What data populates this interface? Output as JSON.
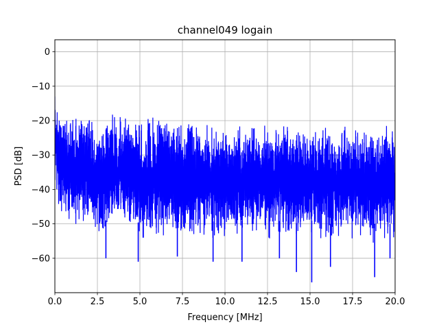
{
  "chart_data": {
    "type": "line",
    "title": "channel049 logain",
    "xlabel": "Frequency [MHz]",
    "ylabel": "PSD [dB]",
    "xlim": [
      0,
      20
    ],
    "ylim": [
      -70,
      3.5
    ],
    "grid": true,
    "line_color": "#0000ff",
    "x_ticks": [
      0.0,
      2.5,
      5.0,
      7.5,
      10.0,
      12.5,
      15.0,
      17.5,
      20.0
    ],
    "x_tick_labels": [
      "0.0",
      "2.5",
      "5.0",
      "7.5",
      "10.0",
      "12.5",
      "15.0",
      "17.5",
      "20.0"
    ],
    "y_ticks": [
      0,
      -10,
      -20,
      -30,
      -40,
      -50,
      -60
    ],
    "y_tick_labels": [
      "0",
      "−10",
      "−20",
      "−30",
      "−40",
      "−50",
      "−60"
    ],
    "series": [
      {
        "x": [
          0.0,
          0.1,
          0.2,
          0.5,
          1.0,
          2.0,
          3.0,
          4.0,
          5.0,
          6.0,
          7.0,
          8.0,
          9.0,
          10.0,
          11.0,
          12.0,
          13.0,
          14.0,
          15.0,
          16.0,
          17.0,
          18.0,
          19.0,
          20.0
        ],
        "upper": [
          -12,
          -13,
          -15,
          -16,
          -17,
          -17.5,
          -18,
          -17,
          -18,
          -18.5,
          -19,
          -19,
          -19.5,
          -20,
          -20,
          -20,
          -20.5,
          -20.5,
          -20.5,
          -20.5,
          -20.5,
          -20.5,
          -20.5,
          -20.5
        ],
        "lower": [
          -40,
          -43,
          -48,
          -50,
          -52,
          -52,
          -55,
          -52,
          -56,
          -54,
          -55,
          -55,
          -55,
          -56,
          -55,
          -56,
          -55,
          -56,
          -55,
          -56,
          -56,
          -56,
          -56,
          -56
        ],
        "dips": [
          {
            "x": 3.0,
            "y": -60
          },
          {
            "x": 4.9,
            "y": -61
          },
          {
            "x": 7.2,
            "y": -59.5
          },
          {
            "x": 9.3,
            "y": -61
          },
          {
            "x": 11.0,
            "y": -61
          },
          {
            "x": 13.2,
            "y": -60
          },
          {
            "x": 14.2,
            "y": -64
          },
          {
            "x": 15.1,
            "y": -67
          },
          {
            "x": 16.2,
            "y": -62.5
          },
          {
            "x": 18.8,
            "y": -65.5
          },
          {
            "x": 19.7,
            "y": -60
          }
        ]
      }
    ]
  }
}
